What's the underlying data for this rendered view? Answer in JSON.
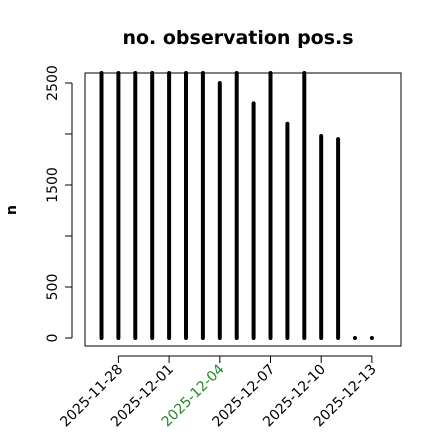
{
  "chart_data": {
    "type": "bar",
    "title": "no. observation pos.s",
    "ylabel": "n",
    "xlabel": "",
    "ylim": [
      0,
      2600
    ],
    "y_ticks": [
      "0",
      "500",
      "1500",
      "2500"
    ],
    "y_minor_ticks": [
      1000,
      2000
    ],
    "x_ticks": [
      {
        "label": "2025-11-28",
        "color": "#000000"
      },
      {
        "label": "2025-12-01",
        "color": "#000000"
      },
      {
        "label": "2025-12-04",
        "color": "#228B22"
      },
      {
        "label": "2025-12-07",
        "color": "#000000"
      },
      {
        "label": "2025-12-10",
        "color": "#000000"
      },
      {
        "label": "2025-12-13",
        "color": "#000000"
      }
    ],
    "series": [
      {
        "x": [
          "2025-11-27",
          "2025-11-28",
          "2025-11-29",
          "2025-11-30",
          "2025-12-01",
          "2025-12-02",
          "2025-12-03",
          "2025-12-04",
          "2025-12-05",
          "2025-12-06",
          "2025-12-07",
          "2025-12-08",
          "2025-12-09",
          "2025-12-10",
          "2025-12-11",
          "2025-12-12",
          "2025-12-13"
        ],
        "values": [
          2600,
          2600,
          2600,
          2600,
          2600,
          2600,
          2600,
          2500,
          2600,
          2300,
          2600,
          2100,
          2600,
          1980,
          1950,
          0,
          0
        ],
        "color": "#000000"
      }
    ],
    "grid": false
  }
}
